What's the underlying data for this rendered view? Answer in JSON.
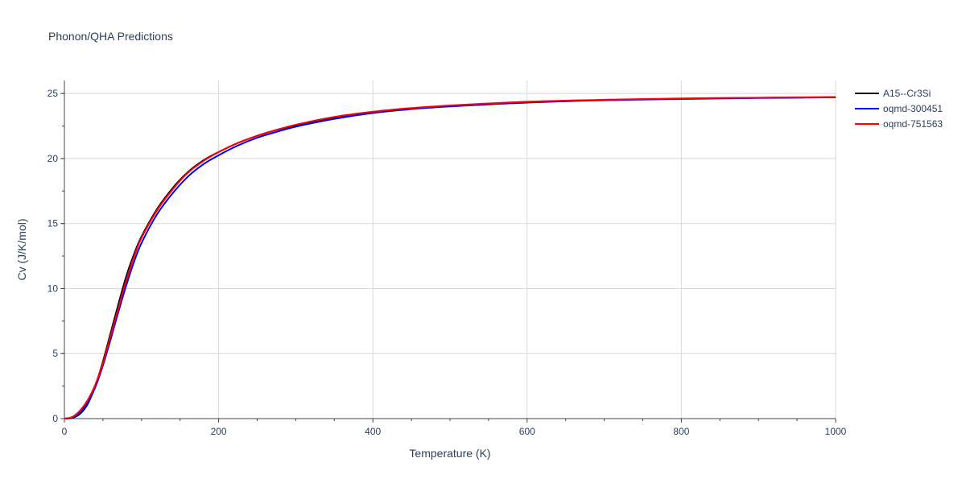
{
  "chart_data": {
    "type": "line",
    "title": "Phonon/QHA Predictions",
    "xlabel": "Temperature (K)",
    "ylabel": "Cv (J/K/mol)",
    "xlim": [
      0,
      1000
    ],
    "ylim": [
      0,
      26
    ],
    "x_ticks": [
      "0",
      "200",
      "400",
      "600",
      "800",
      "1000"
    ],
    "y_ticks": [
      "0",
      "5",
      "10",
      "15",
      "20",
      "25"
    ],
    "grid": true,
    "legend_position": "top-right",
    "series": [
      {
        "name": "A15--Cr3Si",
        "color": "#000000",
        "x": [
          0,
          10,
          20,
          30,
          40,
          50,
          60,
          70,
          80,
          90,
          100,
          120,
          140,
          160,
          180,
          200,
          225,
          250,
          275,
          300,
          350,
          400,
          450,
          500,
          600,
          700,
          800,
          900,
          1000
        ],
        "y": [
          0,
          0.05,
          0.35,
          1.1,
          2.5,
          4.4,
          6.6,
          8.8,
          10.9,
          12.6,
          14.0,
          16.1,
          17.7,
          18.95,
          19.85,
          20.5,
          21.2,
          21.75,
          22.2,
          22.55,
          23.15,
          23.55,
          23.85,
          24.05,
          24.35,
          24.5,
          24.6,
          24.67,
          24.72
        ]
      },
      {
        "name": "oqmd-300451",
        "color": "#0000ff",
        "x": [
          0,
          10,
          20,
          30,
          40,
          50,
          60,
          70,
          80,
          90,
          100,
          120,
          140,
          160,
          180,
          200,
          225,
          250,
          275,
          300,
          350,
          400,
          450,
          500,
          600,
          700,
          800,
          900,
          1000
        ],
        "y": [
          0,
          0.08,
          0.45,
          1.2,
          2.4,
          4.1,
          6.1,
          8.2,
          10.2,
          12.0,
          13.5,
          15.7,
          17.3,
          18.6,
          19.55,
          20.25,
          21.0,
          21.6,
          22.05,
          22.45,
          23.05,
          23.5,
          23.8,
          24.0,
          24.3,
          24.48,
          24.58,
          24.65,
          24.7
        ]
      },
      {
        "name": "oqmd-751563",
        "color": "#ff0000",
        "x": [
          0,
          10,
          20,
          30,
          40,
          50,
          60,
          70,
          80,
          90,
          100,
          120,
          140,
          160,
          180,
          200,
          225,
          250,
          275,
          300,
          350,
          400,
          450,
          500,
          600,
          700,
          800,
          900,
          1000
        ],
        "y": [
          0,
          0.12,
          0.6,
          1.4,
          2.6,
          4.3,
          6.4,
          8.5,
          10.6,
          12.4,
          13.9,
          16.0,
          17.6,
          18.9,
          19.8,
          20.5,
          21.2,
          21.75,
          22.2,
          22.6,
          23.2,
          23.6,
          23.88,
          24.08,
          24.37,
          24.52,
          24.62,
          24.68,
          24.73
        ]
      }
    ]
  }
}
